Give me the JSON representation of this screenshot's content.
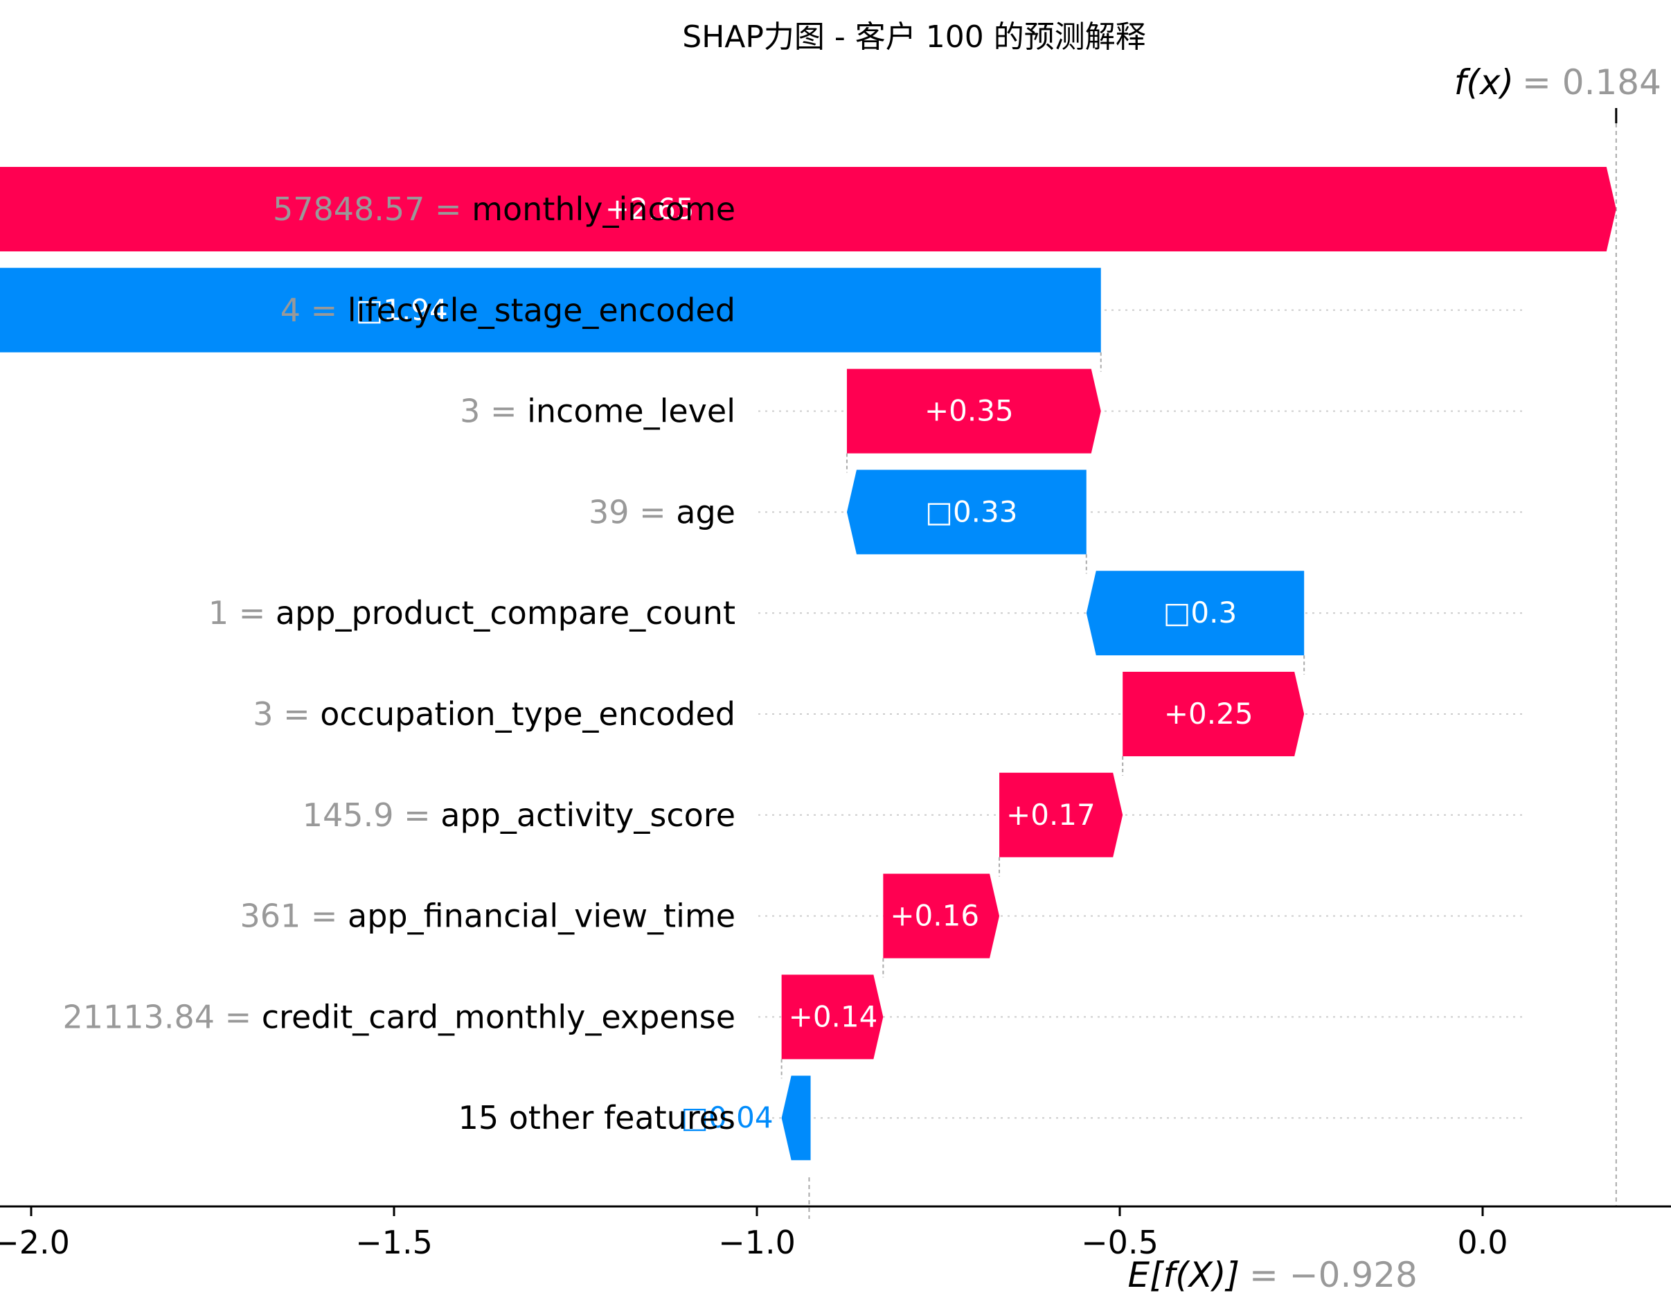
{
  "chart_data": {
    "type": "waterfall",
    "title": "SHAP力图 - 客户 100 的预测解释",
    "fx_label": "f(x)",
    "fx_value": "= 0.184",
    "fx": 0.184,
    "ex_label": "E[f(X)]",
    "ex_value": "= −0.928",
    "base_value": -0.928,
    "xlim": [
      -2.5,
      0.35
    ],
    "xticks": [
      -2.0,
      -1.5,
      -1.0,
      -0.5,
      0.0
    ],
    "xtick_labels": [
      "−2.0",
      "−1.5",
      "−1.0",
      "−0.5",
      "0.0"
    ],
    "colors": {
      "positive": "#ff0051",
      "negative": "#008bfb",
      "value_text": "#999999"
    },
    "features": [
      {
        "value": "57848.57",
        "name": "monthly_income",
        "shap": 2.65,
        "label": "+2.65"
      },
      {
        "value": "4",
        "name": "lifecycle_stage_encoded",
        "shap": -1.94,
        "label": "□1.94"
      },
      {
        "value": "3",
        "name": "income_level",
        "shap": 0.35,
        "label": "+0.35"
      },
      {
        "value": "39",
        "name": "age",
        "shap": -0.33,
        "label": "□0.33"
      },
      {
        "value": "1",
        "name": "app_product_compare_count",
        "shap": -0.3,
        "label": "□0.3"
      },
      {
        "value": "3",
        "name": "occupation_type_encoded",
        "shap": 0.25,
        "label": "+0.25"
      },
      {
        "value": "145.9",
        "name": "app_activity_score",
        "shap": 0.17,
        "label": "+0.17"
      },
      {
        "value": "361",
        "name": "app_financial_view_time",
        "shap": 0.16,
        "label": "+0.16"
      },
      {
        "value": "21113.84",
        "name": "credit_card_monthly_expense",
        "shap": 0.14,
        "label": "+0.14"
      },
      {
        "value": "",
        "name": "15 other features",
        "shap": -0.04,
        "label": "□0.04"
      }
    ]
  }
}
